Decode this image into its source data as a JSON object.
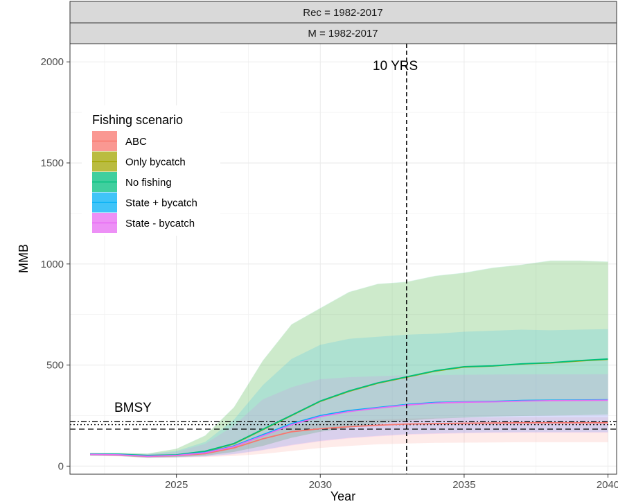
{
  "chart_data": {
    "type": "line",
    "facets": [
      "Rec = 1982-2017",
      "M = 1982-2017"
    ],
    "xlabel": "Year",
    "ylabel": "MMB",
    "xlim": [
      2021.3,
      2040.3
    ],
    "ylim": [
      -40,
      2090
    ],
    "xticks": [
      2025,
      2030,
      2035,
      2040
    ],
    "yticks": [
      0,
      500,
      1000,
      1500,
      2000
    ],
    "grid": true,
    "legend": {
      "title": "Fishing scenario",
      "position": "top-left"
    },
    "x": [
      2022,
      2023,
      2024,
      2025,
      2026,
      2027,
      2028,
      2029,
      2030,
      2031,
      2032,
      2033,
      2034,
      2035,
      2036,
      2037,
      2038,
      2039,
      2040
    ],
    "series": [
      {
        "name": "ABC",
        "color": "#F8766D",
        "values": [
          58,
          55,
          48,
          52,
          62,
          90,
          135,
          170,
          185,
          195,
          202,
          208,
          210,
          212,
          213,
          214,
          214,
          214,
          214
        ],
        "lower": [
          50,
          48,
          40,
          42,
          45,
          50,
          60,
          75,
          90,
          100,
          108,
          112,
          115,
          116,
          117,
          118,
          118,
          118,
          118
        ],
        "upper": [
          62,
          60,
          52,
          58,
          70,
          105,
          160,
          200,
          215,
          225,
          230,
          235,
          238,
          240,
          241,
          242,
          242,
          242,
          242
        ]
      },
      {
        "name": "Only bycatch",
        "color": "#A3A500",
        "values": [
          59,
          58,
          52,
          55,
          72,
          110,
          180,
          250,
          320,
          370,
          410,
          440,
          470,
          490,
          495,
          505,
          510,
          520,
          528
        ],
        "lower": [
          52,
          50,
          42,
          45,
          52,
          70,
          100,
          140,
          170,
          190,
          210,
          225,
          235,
          240,
          245,
          248,
          250,
          252,
          255
        ],
        "upper": [
          65,
          65,
          62,
          85,
          150,
          290,
          520,
          700,
          780,
          860,
          900,
          910,
          940,
          955,
          980,
          995,
          1015,
          1015,
          1010
        ]
      },
      {
        "name": "No fishing",
        "color": "#00BF7D",
        "values": [
          60,
          59,
          53,
          56,
          74,
          112,
          182,
          252,
          322,
          372,
          412,
          442,
          472,
          492,
          496,
          506,
          512,
          522,
          530
        ],
        "lower": [
          52,
          50,
          42,
          45,
          52,
          70,
          100,
          140,
          170,
          190,
          210,
          225,
          235,
          240,
          245,
          248,
          250,
          252,
          255
        ],
        "upper": [
          65,
          66,
          62,
          86,
          152,
          292,
          522,
          702,
          782,
          862,
          902,
          912,
          942,
          957,
          982,
          997,
          1017,
          1017,
          1012
        ]
      },
      {
        "name": "State + bycatch",
        "color": "#00B0F6",
        "values": [
          59,
          57,
          50,
          54,
          68,
          100,
          155,
          210,
          250,
          275,
          290,
          305,
          315,
          318,
          320,
          325,
          326,
          327,
          328
        ],
        "lower": [
          52,
          50,
          42,
          44,
          48,
          60,
          80,
          105,
          125,
          140,
          150,
          158,
          162,
          165,
          167,
          168,
          168,
          168,
          168
        ],
        "upper": [
          64,
          63,
          60,
          75,
          120,
          230,
          400,
          530,
          600,
          630,
          640,
          650,
          655,
          665,
          670,
          675,
          672,
          675,
          678
        ]
      },
      {
        "name": "State - bycatch",
        "color": "#E76BF3",
        "values": [
          58,
          56,
          49,
          53,
          66,
          97,
          150,
          205,
          245,
          270,
          287,
          302,
          312,
          316,
          318,
          322,
          324,
          325,
          326
        ],
        "lower": [
          51,
          49,
          41,
          43,
          47,
          58,
          78,
          102,
          122,
          137,
          147,
          155,
          159,
          162,
          164,
          165,
          165,
          165,
          165
        ],
        "upper": [
          63,
          62,
          58,
          70,
          110,
          200,
          330,
          390,
          430,
          440,
          445,
          450,
          450,
          452,
          453,
          454,
          454,
          454,
          455
        ]
      }
    ],
    "reference_lines": {
      "bmsy_label": "BMSY",
      "bmsy_dashed": 183,
      "bmsy_dotted": 205,
      "bmsy_dotdash": 220,
      "vline_x": 2033,
      "vline_label": "10 YRS"
    }
  }
}
